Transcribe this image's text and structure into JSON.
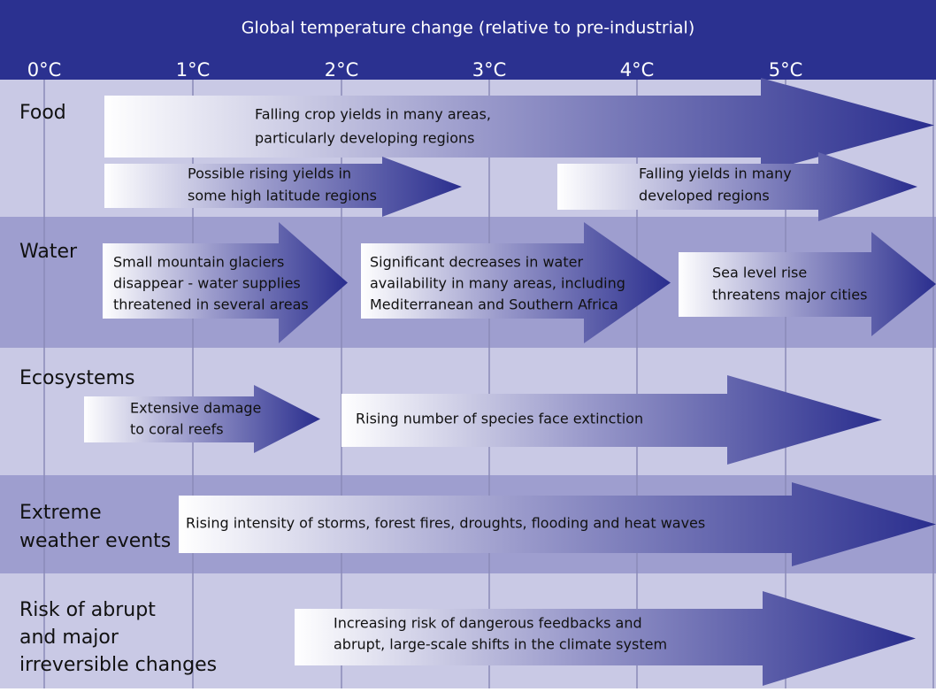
{
  "header": {
    "title": "Global temperature change (relative to pre-industrial)",
    "scale": [
      "0°C",
      "1°C",
      "2°C",
      "3°C",
      "4°C",
      "5°C"
    ]
  },
  "rows": [
    {
      "label": [
        "Food"
      ],
      "arrows": [
        {
          "lines": [
            "Falling crop yields in many areas,",
            "particularly developing regions"
          ]
        },
        {
          "lines": [
            "Possible rising yields in",
            "some high latitude regions"
          ]
        },
        {
          "lines": [
            "Falling yields in many",
            "developed regions"
          ]
        }
      ]
    },
    {
      "label": [
        "Water"
      ],
      "arrows": [
        {
          "lines": [
            "Small mountain glaciers",
            "disappear - water supplies",
            "threatened in several areas"
          ]
        },
        {
          "lines": [
            "Significant decreases in water",
            "availability in many areas, including",
            "Mediterranean and Southern Africa"
          ]
        },
        {
          "lines": [
            "Sea level rise",
            "threatens major cities"
          ]
        }
      ]
    },
    {
      "label": [
        "Ecosystems"
      ],
      "arrows": [
        {
          "lines": [
            "Extensive damage",
            "to coral reefs"
          ]
        },
        {
          "lines": [
            "Rising number of species face extinction"
          ]
        }
      ]
    },
    {
      "label": [
        "Extreme",
        "weather events"
      ],
      "arrows": [
        {
          "lines": [
            "Rising intensity of storms, forest fires, droughts, flooding and heat waves"
          ]
        }
      ]
    },
    {
      "label": [
        "Risk of abrupt",
        "and major",
        "irreversible changes"
      ],
      "arrows": [
        {
          "lines": [
            "Increasing risk of dangerous feedbacks and",
            "abrupt, large-scale shifts in the climate system"
          ]
        }
      ]
    }
  ]
}
